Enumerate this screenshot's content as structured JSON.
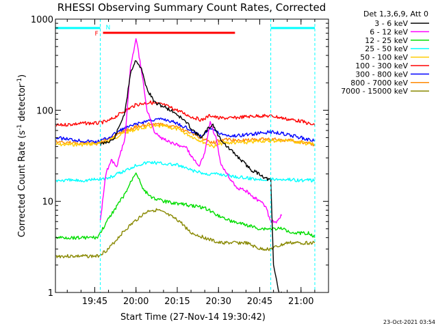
{
  "chart_data": {
    "type": "line",
    "title": "RHESSI Observing Summary Count Rates, Corrected",
    "xlabel": "Start Time (27-Nov-14 19:30:42)",
    "ylabel_main": "Corrected Count Rate (s",
    "ylabel_sup1": "-1",
    "ylabel_mid": " detector",
    "ylabel_sup2": "-1",
    "ylabel_end": ")",
    "y_scale": "log",
    "ylim": [
      1,
      1000
    ],
    "xlim_minutes": [
      "19:30:42",
      "21:10"
    ],
    "x_ticks": [
      "19:45",
      "20:00",
      "20:15",
      "20:30",
      "20:45",
      "21:00"
    ],
    "y_ticks": [
      "1",
      "10",
      "100",
      "1000"
    ],
    "timestamp": "23-Oct-2021 03:54",
    "legend_header": "Det 1,3,6,9, Att 0",
    "legend_position": "top-right",
    "flags": {
      "night_label": "N",
      "flare_label": "F",
      "night_color": "#00ffff",
      "flare_color": "#ff0000",
      "night_before_end": "19:47",
      "night_after_start": "20:49",
      "flare_start": "19:48",
      "flare_end": "20:36"
    },
    "data_gap": {
      "start": "19:47",
      "end": "20:49"
    },
    "series": [
      {
        "name": "3 - 6 keV",
        "color": "#000000",
        "points": [
          [
            "19:47",
            42
          ],
          [
            "19:52",
            48
          ],
          [
            "19:56",
            95
          ],
          [
            "19:58",
            260
          ],
          [
            "20:00",
            360
          ],
          [
            "20:02",
            280
          ],
          [
            "20:04",
            170
          ],
          [
            "20:07",
            120
          ],
          [
            "20:10",
            110
          ],
          [
            "20:14",
            95
          ],
          [
            "20:18",
            75
          ],
          [
            "20:22",
            55
          ],
          [
            "20:24",
            50
          ],
          [
            "20:26",
            62
          ],
          [
            "20:28",
            70
          ],
          [
            "20:30",
            52
          ],
          [
            "20:33",
            40
          ],
          [
            "20:36",
            33
          ],
          [
            "20:39",
            27
          ],
          [
            "20:42",
            22
          ],
          [
            "20:45",
            20
          ],
          [
            "20:47",
            18
          ],
          [
            "20:49",
            17
          ],
          [
            "20:50",
            2
          ],
          [
            "20:52",
            1
          ],
          [
            "20:54",
            1
          ]
        ]
      },
      {
        "name": "6 - 12 keV",
        "color": "#ff00ff",
        "points": [
          [
            "19:47",
            6
          ],
          [
            "19:49",
            20
          ],
          [
            "19:51",
            28
          ],
          [
            "19:53",
            24
          ],
          [
            "19:56",
            50
          ],
          [
            "19:58",
            300
          ],
          [
            "20:00",
            620
          ],
          [
            "20:02",
            280
          ],
          [
            "20:04",
            100
          ],
          [
            "20:07",
            55
          ],
          [
            "20:10",
            48
          ],
          [
            "20:14",
            42
          ],
          [
            "20:18",
            40
          ],
          [
            "20:21",
            28
          ],
          [
            "20:23",
            25
          ],
          [
            "20:25",
            33
          ],
          [
            "20:27",
            75
          ],
          [
            "20:29",
            50
          ],
          [
            "20:31",
            25
          ],
          [
            "20:34",
            18
          ],
          [
            "20:37",
            14
          ],
          [
            "20:40",
            13
          ],
          [
            "20:43",
            11
          ],
          [
            "20:45",
            10
          ],
          [
            "20:47",
            9
          ],
          [
            "20:49",
            6
          ],
          [
            "20:51",
            6
          ],
          [
            "20:53",
            7
          ]
        ]
      },
      {
        "name": "12 - 25 keV",
        "color": "#00dd00",
        "points": [
          [
            "19:31",
            4
          ],
          [
            "19:36",
            4
          ],
          [
            "19:41",
            4
          ],
          [
            "19:46",
            4
          ],
          [
            "19:47",
            4.5
          ],
          [
            "19:52",
            8
          ],
          [
            "19:56",
            12
          ],
          [
            "19:58",
            16
          ],
          [
            "20:00",
            21
          ],
          [
            "20:03",
            13
          ],
          [
            "20:06",
            11
          ],
          [
            "20:10",
            10
          ],
          [
            "20:15",
            9.5
          ],
          [
            "20:20",
            9
          ],
          [
            "20:25",
            8.5
          ],
          [
            "20:30",
            7
          ],
          [
            "20:35",
            6
          ],
          [
            "20:40",
            5.5
          ],
          [
            "20:45",
            5
          ],
          [
            "20:49",
            5
          ],
          [
            "20:53",
            5
          ],
          [
            "20:58",
            4.5
          ],
          [
            "21:03",
            4.5
          ],
          [
            "21:05",
            4
          ]
        ]
      },
      {
        "name": "25 - 50 keV",
        "color": "#00ffff",
        "points": [
          [
            "19:31",
            17
          ],
          [
            "19:36",
            17
          ],
          [
            "19:41",
            17
          ],
          [
            "19:46",
            17.5
          ],
          [
            "19:50",
            18
          ],
          [
            "19:55",
            21
          ],
          [
            "20:00",
            25
          ],
          [
            "20:05",
            27
          ],
          [
            "20:10",
            26
          ],
          [
            "20:15",
            25
          ],
          [
            "20:20",
            22
          ],
          [
            "20:25",
            20
          ],
          [
            "20:30",
            20
          ],
          [
            "20:35",
            19
          ],
          [
            "20:40",
            18
          ],
          [
            "20:45",
            17.5
          ],
          [
            "20:50",
            17.5
          ],
          [
            "20:55",
            17.5
          ],
          [
            "21:00",
            17
          ],
          [
            "21:05",
            17
          ]
        ]
      },
      {
        "name": "50 - 100 keV",
        "color": "#ffcc00",
        "points": [
          [
            "19:31",
            42
          ],
          [
            "19:36",
            42
          ],
          [
            "19:41",
            42
          ],
          [
            "19:46",
            43
          ],
          [
            "19:50",
            46
          ],
          [
            "19:55",
            55
          ],
          [
            "20:00",
            62
          ],
          [
            "20:05",
            66
          ],
          [
            "20:10",
            67
          ],
          [
            "20:15",
            62
          ],
          [
            "20:20",
            52
          ],
          [
            "20:25",
            44
          ],
          [
            "20:28",
            40
          ],
          [
            "20:32",
            44
          ],
          [
            "20:36",
            44
          ],
          [
            "20:40",
            44
          ],
          [
            "20:45",
            46
          ],
          [
            "20:50",
            46
          ],
          [
            "20:55",
            47
          ],
          [
            "21:00",
            44
          ],
          [
            "21:05",
            42
          ]
        ]
      },
      {
        "name": "100 - 300 keV",
        "color": "#ff0000",
        "points": [
          [
            "19:31",
            68
          ],
          [
            "19:36",
            70
          ],
          [
            "19:41",
            72
          ],
          [
            "19:46",
            72
          ],
          [
            "19:50",
            76
          ],
          [
            "19:55",
            95
          ],
          [
            "20:00",
            115
          ],
          [
            "20:05",
            122
          ],
          [
            "20:10",
            115
          ],
          [
            "20:15",
            100
          ],
          [
            "20:20",
            85
          ],
          [
            "20:24",
            78
          ],
          [
            "20:27",
            88
          ],
          [
            "20:30",
            82
          ],
          [
            "20:35",
            82
          ],
          [
            "20:40",
            85
          ],
          [
            "20:45",
            87
          ],
          [
            "20:50",
            86
          ],
          [
            "20:55",
            80
          ],
          [
            "21:00",
            76
          ],
          [
            "21:05",
            68
          ]
        ]
      },
      {
        "name": "300 - 800 keV",
        "color": "#0000ff",
        "points": [
          [
            "19:31",
            50
          ],
          [
            "19:36",
            48
          ],
          [
            "19:41",
            46
          ],
          [
            "19:46",
            45
          ],
          [
            "19:50",
            50
          ],
          [
            "19:55",
            62
          ],
          [
            "20:00",
            70
          ],
          [
            "20:05",
            78
          ],
          [
            "20:10",
            80
          ],
          [
            "20:15",
            72
          ],
          [
            "20:20",
            60
          ],
          [
            "20:24",
            52
          ],
          [
            "20:27",
            65
          ],
          [
            "20:30",
            56
          ],
          [
            "20:35",
            52
          ],
          [
            "20:40",
            54
          ],
          [
            "20:45",
            56
          ],
          [
            "20:50",
            58
          ],
          [
            "20:55",
            54
          ],
          [
            "21:00",
            50
          ],
          [
            "21:05",
            46
          ]
        ]
      },
      {
        "name": "800 - 7000 keV",
        "color": "#ff8800",
        "points": [
          [
            "19:31",
            45
          ],
          [
            "19:36",
            44
          ],
          [
            "19:41",
            43
          ],
          [
            "19:46",
            43
          ],
          [
            "19:50",
            48
          ],
          [
            "19:55",
            58
          ],
          [
            "20:00",
            66
          ],
          [
            "20:05",
            70
          ],
          [
            "20:10",
            70
          ],
          [
            "20:15",
            65
          ],
          [
            "20:20",
            56
          ],
          [
            "20:25",
            48
          ],
          [
            "20:28",
            44
          ],
          [
            "20:32",
            48
          ],
          [
            "20:36",
            47
          ],
          [
            "20:40",
            47
          ],
          [
            "20:45",
            48
          ],
          [
            "20:50",
            48
          ],
          [
            "20:55",
            47
          ],
          [
            "21:00",
            45
          ],
          [
            "21:05",
            42
          ]
        ]
      },
      {
        "name": "7000 - 15000 keV",
        "color": "#888800",
        "points": [
          [
            "19:31",
            2.5
          ],
          [
            "19:36",
            2.5
          ],
          [
            "19:41",
            2.5
          ],
          [
            "19:46",
            2.5
          ],
          [
            "19:50",
            3
          ],
          [
            "19:55",
            4.5
          ],
          [
            "19:58",
            5.5
          ],
          [
            "20:02",
            7
          ],
          [
            "20:05",
            8
          ],
          [
            "20:08",
            8
          ],
          [
            "20:12",
            7
          ],
          [
            "20:16",
            6
          ],
          [
            "20:20",
            4.5
          ],
          [
            "20:25",
            4
          ],
          [
            "20:30",
            3.5
          ],
          [
            "20:35",
            3.5
          ],
          [
            "20:40",
            3.5
          ],
          [
            "20:45",
            3
          ],
          [
            "20:49",
            3
          ],
          [
            "20:55",
            3.5
          ],
          [
            "21:00",
            3.5
          ],
          [
            "21:05",
            3.5
          ]
        ]
      }
    ]
  }
}
